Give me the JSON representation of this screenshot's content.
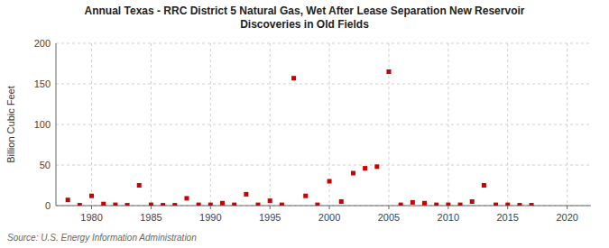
{
  "chart_data": {
    "type": "scatter",
    "title": "Annual Texas - RRC District 5 Natural Gas, Wet After Lease Separation New Reservoir\nDiscoveries in Old Fields",
    "ylabel": "Billion Cubic Feet",
    "source": "Source: U.S. Energy Information Administration",
    "color": "#cc0000",
    "marker": "square",
    "grid": true,
    "xlim": [
      1977,
      2022
    ],
    "ylim": [
      0,
      200
    ],
    "xticks": [
      1980,
      1985,
      1990,
      1995,
      2000,
      2005,
      2010,
      2015,
      2020
    ],
    "yticks": [
      0,
      50,
      100,
      150,
      200
    ],
    "x": [
      1978,
      1979,
      1980,
      1981,
      1982,
      1983,
      1984,
      1985,
      1986,
      1987,
      1988,
      1989,
      1990,
      1991,
      1992,
      1993,
      1994,
      1995,
      1996,
      1997,
      1998,
      1999,
      2000,
      2001,
      2002,
      2003,
      2004,
      2005,
      2006,
      2007,
      2008,
      2009,
      2010,
      2011,
      2012,
      2013,
      2014,
      2015,
      2016,
      2017
    ],
    "values": [
      7,
      0.5,
      12,
      2,
      1,
      0.5,
      25,
      1,
      0.5,
      0.5,
      9,
      1,
      1,
      3,
      1,
      14,
      1,
      6,
      1,
      157,
      12,
      1,
      30,
      5,
      40,
      46,
      48,
      165,
      1,
      4,
      3,
      1,
      1,
      1,
      5,
      25,
      1,
      1,
      0.5,
      0.5
    ]
  }
}
